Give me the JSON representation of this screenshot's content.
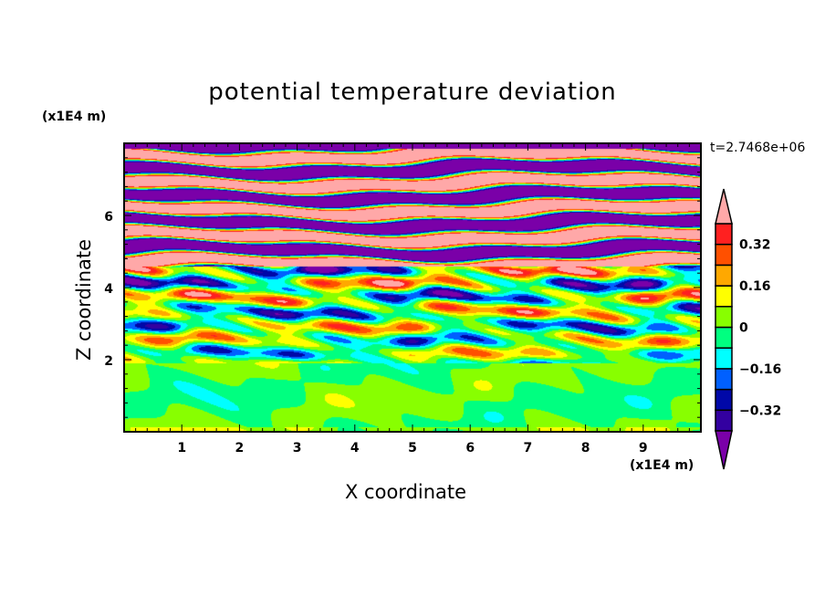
{
  "chart_data": {
    "type": "heatmap",
    "subtype": "filled-contour",
    "title": "potential temperature deviation",
    "xlabel": "X coordinate",
    "ylabel": "Z coordinate",
    "x_unit": "(x1E4 m)",
    "z_unit": "(x1E4 m)",
    "time_label": "t=2.7468e+06",
    "xlim": [
      0,
      10
    ],
    "ylim": [
      0,
      8
    ],
    "x_ticks": [
      "1",
      "2",
      "3",
      "4",
      "5",
      "6",
      "7",
      "8",
      "9"
    ],
    "y_ticks": [
      "2",
      "4",
      "6"
    ],
    "colorbar": {
      "levels": [
        -0.4,
        -0.32,
        -0.24,
        -0.16,
        -0.08,
        0,
        0.08,
        0.16,
        0.24,
        0.32,
        0.4
      ],
      "tick_labels": [
        "0.32",
        "0.16",
        "0",
        "−0.16",
        "−0.32"
      ],
      "tick_values": [
        0.32,
        0.16,
        0,
        -0.16,
        -0.32
      ],
      "colors": [
        "#7a00a8",
        "#3300a0",
        "#0008a8",
        "#0060ff",
        "#00ffff",
        "#00ff80",
        "#88ff00",
        "#ffff00",
        "#ffa800",
        "#ff5000",
        "#ff2020",
        "#ffa8a8"
      ],
      "extend": "both"
    },
    "regions": [
      {
        "z_range": [
          0,
          2
        ],
        "description_values": [
          -0.08,
          0.08
        ]
      },
      {
        "z_range": [
          2,
          4.5
        ],
        "description_values": [
          -0.4,
          0.4
        ]
      },
      {
        "z_range": [
          4.5,
          8
        ],
        "description_values": [
          -0.5,
          0.5
        ]
      }
    ]
  }
}
